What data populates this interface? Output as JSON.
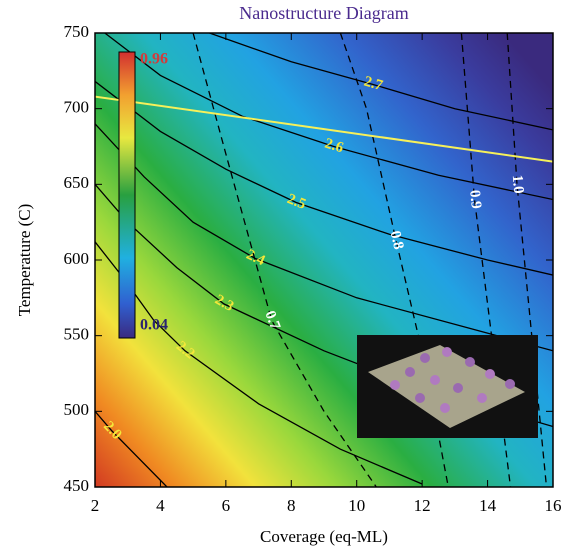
{
  "chart_data": {
    "type": "contour",
    "title": "Nanostructure Diagram",
    "x_label": "Coverage (eq-ML)",
    "y_label": "Temperature (C)",
    "xlim": [
      2,
      16
    ],
    "xticks": [
      2,
      4,
      6,
      8,
      10,
      12,
      14,
      16
    ],
    "ylim": [
      450,
      750
    ],
    "yticks": [
      450,
      500,
      550,
      600,
      650,
      700,
      750
    ],
    "colorbar": {
      "max": 0.96,
      "min": 0.04
    },
    "contours": [
      {
        "level": 2.7,
        "style": "solid",
        "label_color": "#f4e83a",
        "x": [
          5.5,
          8,
          10.5,
          13,
          16
        ],
        "y": [
          750,
          731,
          716,
          700,
          686
        ]
      },
      {
        "level": 2.6,
        "style": "solid",
        "label_color": "#f4e83a",
        "x": [
          2.3,
          4,
          6.5,
          9.3,
          12.5,
          16
        ],
        "y": [
          750,
          722,
          695,
          675,
          656,
          640
        ]
      },
      {
        "level": 2.5,
        "style": "solid",
        "label_color": "#f4e83a",
        "x": [
          2,
          4,
          6,
          8.15,
          11,
          14,
          16
        ],
        "y": [
          718,
          685,
          660,
          638,
          617,
          600,
          590
        ]
      },
      {
        "level": 2.4,
        "style": "solid",
        "label_color": "#f4e83a",
        "x": [
          2,
          3.5,
          5,
          6.9,
          10,
          16
        ],
        "y": [
          690,
          655,
          625,
          601,
          575,
          540
        ]
      },
      {
        "level": 2.3,
        "style": "solid",
        "label_color": "#f4e83a",
        "x": [
          2,
          3,
          4.5,
          5.94,
          9,
          12,
          16
        ],
        "y": [
          650,
          625,
          595,
          571,
          540,
          515,
          490
        ]
      },
      {
        "level": 2.2,
        "style": "solid",
        "label_color": "#f4e83a",
        "x": [
          2,
          2.8,
          3.8,
          4.75,
          7,
          9.5,
          12
        ],
        "y": [
          612,
          590,
          560,
          540,
          505,
          475,
          452
        ]
      },
      {
        "level": 2,
        "value_label": "2.0",
        "style": "solid",
        "label_color": "#f4e83a",
        "x": [
          2,
          2.52,
          4.2
        ],
        "y": [
          500,
          487,
          450
        ]
      },
      {
        "level": 0.7,
        "style": "dashed",
        "label_color": "#ffffff",
        "x": [
          5,
          6,
          7.4,
          9,
          10.6
        ],
        "y": [
          750,
          670,
          560,
          500,
          450
        ]
      },
      {
        "level": 0.8,
        "style": "dashed",
        "label_color": "#ffffff",
        "x": [
          9.5,
          10.3,
          11.2,
          12.1,
          12.8
        ],
        "y": [
          750,
          700,
          613,
          530,
          450
        ]
      },
      {
        "level": 0.9,
        "style": "dashed",
        "label_color": "#ffffff",
        "x": [
          13.2,
          13.6,
          14.7
        ],
        "y": [
          750,
          640,
          450
        ]
      },
      {
        "level": 1,
        "value_label": "1.0",
        "style": "dashed",
        "label_color": "#ffffff",
        "x": [
          14.6,
          14.9,
          15.8
        ],
        "y": [
          750,
          650,
          450
        ]
      }
    ],
    "boundary": {
      "color": "#f6f05a",
      "x": [
        2,
        16
      ],
      "y": [
        708,
        665
      ]
    }
  }
}
